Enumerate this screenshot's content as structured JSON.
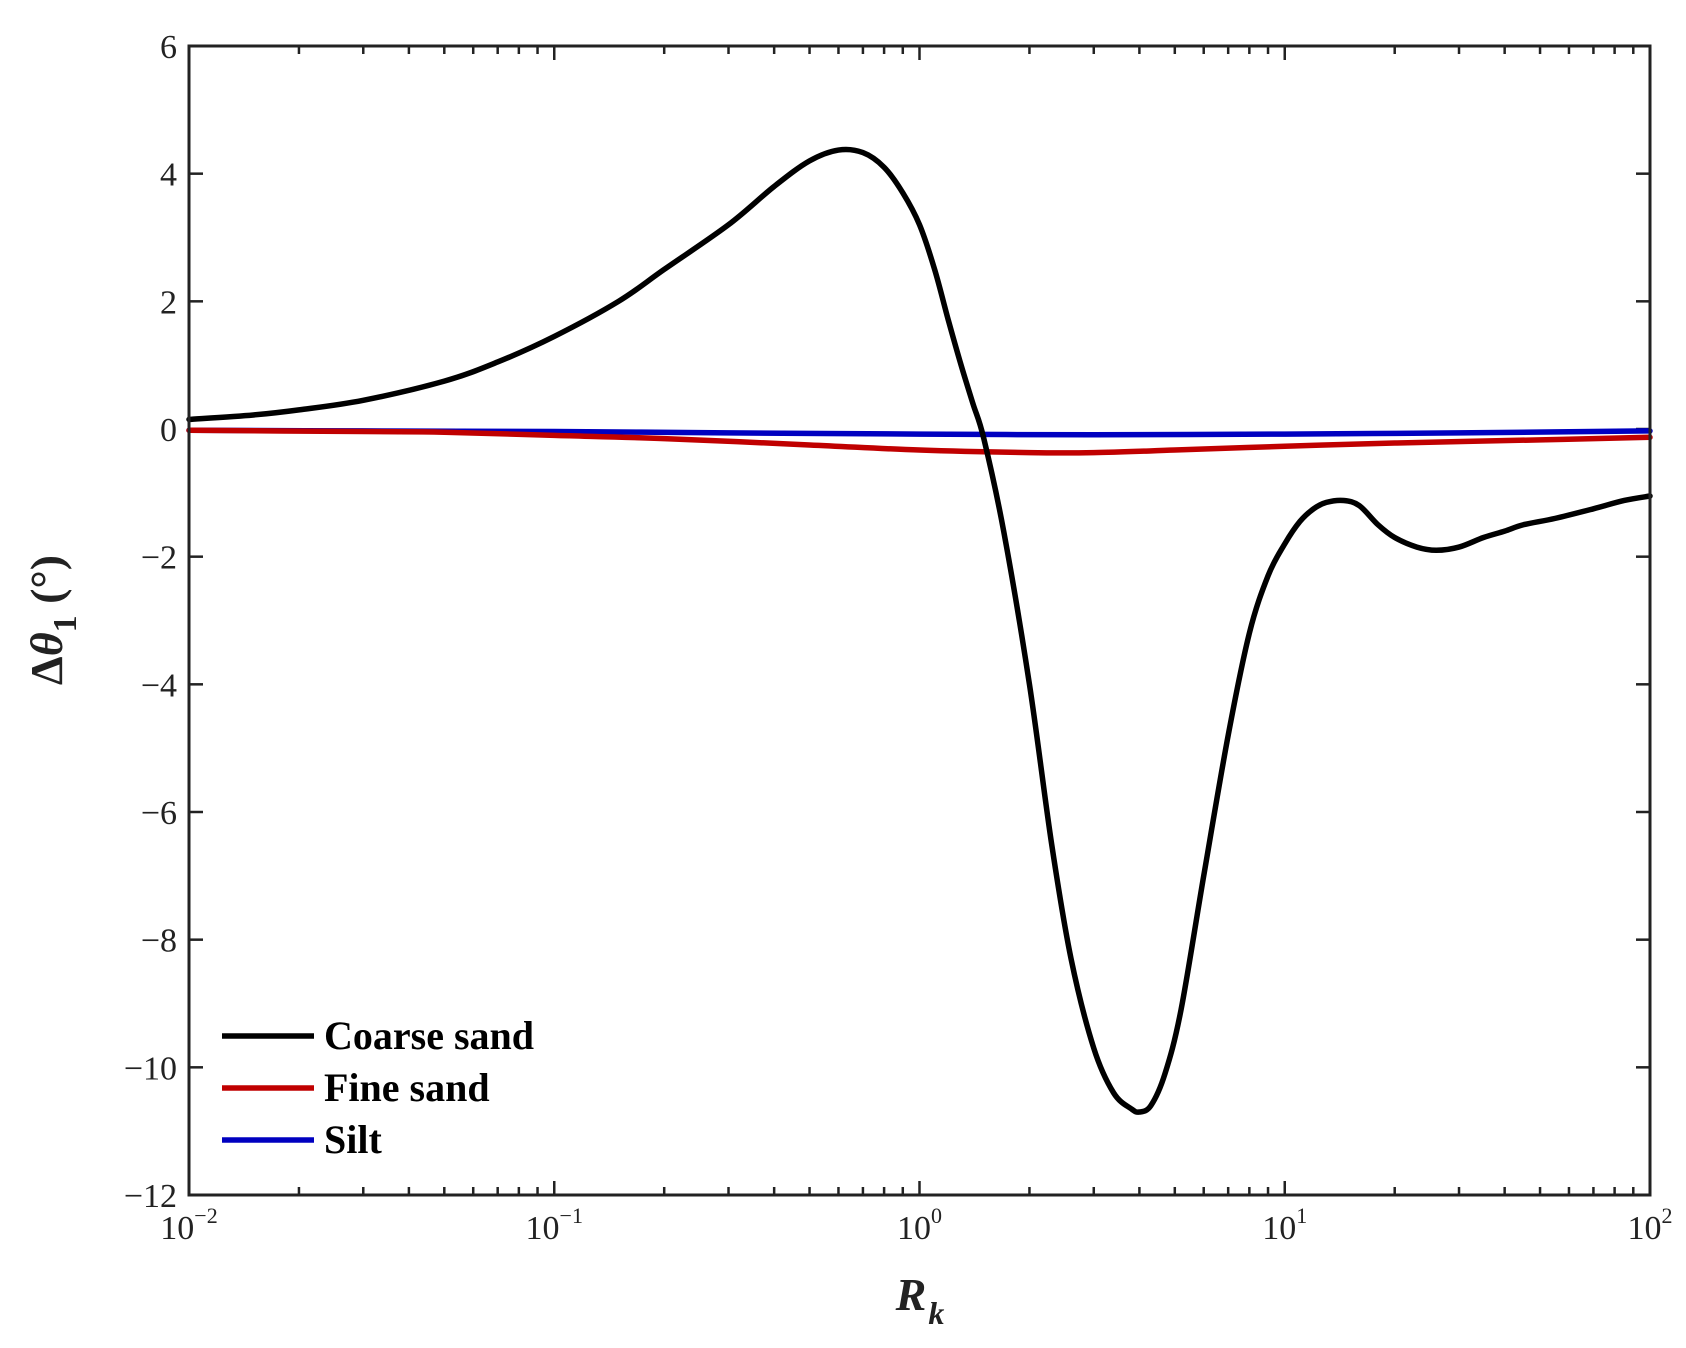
{
  "chart_data": {
    "type": "line",
    "x_scale": "log",
    "xlim": [
      0.01,
      100
    ],
    "ylim": [
      -12,
      6
    ],
    "x_ticks": [
      {
        "value": 0.01,
        "base": "10",
        "exp": "−2"
      },
      {
        "value": 0.1,
        "base": "10",
        "exp": "−1"
      },
      {
        "value": 1,
        "base": "10",
        "exp": "0"
      },
      {
        "value": 10,
        "base": "10",
        "exp": "1"
      },
      {
        "value": 100,
        "base": "10",
        "exp": "2"
      }
    ],
    "y_ticks": [
      {
        "value": 6,
        "label": "6"
      },
      {
        "value": 4,
        "label": "4"
      },
      {
        "value": 2,
        "label": "2"
      },
      {
        "value": 0,
        "label": "0"
      },
      {
        "value": -2,
        "label": "−2"
      },
      {
        "value": -4,
        "label": "−4"
      },
      {
        "value": -6,
        "label": "−6"
      },
      {
        "value": -8,
        "label": "−8"
      },
      {
        "value": -10,
        "label": "−10"
      },
      {
        "value": -12,
        "label": "−12"
      }
    ],
    "xlabel": {
      "main": "R",
      "sub": "k"
    },
    "ylabel": {
      "delta": "Δ",
      "theta": "θ",
      "sub": "1",
      "unit": " (°)"
    },
    "grid": false,
    "box": true,
    "legend_position": "bottom-left",
    "series": [
      {
        "name": "Coarse sand",
        "color": "#000000",
        "points": [
          [
            0.01,
            0.15
          ],
          [
            0.015,
            0.22
          ],
          [
            0.02,
            0.3
          ],
          [
            0.03,
            0.45
          ],
          [
            0.05,
            0.75
          ],
          [
            0.07,
            1.05
          ],
          [
            0.1,
            1.45
          ],
          [
            0.15,
            2.0
          ],
          [
            0.2,
            2.5
          ],
          [
            0.3,
            3.2
          ],
          [
            0.4,
            3.8
          ],
          [
            0.5,
            4.2
          ],
          [
            0.6,
            4.37
          ],
          [
            0.7,
            4.33
          ],
          [
            0.8,
            4.1
          ],
          [
            0.9,
            3.7
          ],
          [
            1.0,
            3.2
          ],
          [
            1.1,
            2.5
          ],
          [
            1.2,
            1.7
          ],
          [
            1.3,
            1.0
          ],
          [
            1.4,
            0.4
          ],
          [
            1.5,
            -0.15
          ],
          [
            1.7,
            -1.6
          ],
          [
            2.0,
            -4.0
          ],
          [
            2.3,
            -6.5
          ],
          [
            2.6,
            -8.3
          ],
          [
            3.0,
            -9.7
          ],
          [
            3.4,
            -10.4
          ],
          [
            3.8,
            -10.65
          ],
          [
            4.0,
            -10.7
          ],
          [
            4.3,
            -10.6
          ],
          [
            4.7,
            -10.1
          ],
          [
            5.2,
            -9.1
          ],
          [
            6.0,
            -7.0
          ],
          [
            7.0,
            -4.8
          ],
          [
            8.0,
            -3.2
          ],
          [
            9.0,
            -2.3
          ],
          [
            10.0,
            -1.8
          ],
          [
            11.0,
            -1.45
          ],
          [
            12.0,
            -1.25
          ],
          [
            13.0,
            -1.15
          ],
          [
            14.5,
            -1.12
          ],
          [
            16.0,
            -1.2
          ],
          [
            18.0,
            -1.5
          ],
          [
            20.0,
            -1.7
          ],
          [
            23.0,
            -1.85
          ],
          [
            26.0,
            -1.9
          ],
          [
            30.0,
            -1.85
          ],
          [
            35.0,
            -1.7
          ],
          [
            40.0,
            -1.6
          ],
          [
            45.0,
            -1.5
          ],
          [
            55.0,
            -1.4
          ],
          [
            70.0,
            -1.25
          ],
          [
            85.0,
            -1.12
          ],
          [
            100.0,
            -1.05
          ]
        ]
      },
      {
        "name": "Fine sand",
        "color": "#c00000",
        "points": [
          [
            0.01,
            -0.02
          ],
          [
            0.03,
            -0.04
          ],
          [
            0.05,
            -0.05
          ],
          [
            0.1,
            -0.1
          ],
          [
            0.2,
            -0.15
          ],
          [
            0.5,
            -0.25
          ],
          [
            1.0,
            -0.33
          ],
          [
            2.0,
            -0.37
          ],
          [
            3.0,
            -0.37
          ],
          [
            5.0,
            -0.33
          ],
          [
            10.0,
            -0.27
          ],
          [
            20.0,
            -0.22
          ],
          [
            50.0,
            -0.17
          ],
          [
            100.0,
            -0.13
          ]
        ]
      },
      {
        "name": "Silt",
        "color": "#0000c0",
        "points": [
          [
            0.01,
            -0.02
          ],
          [
            0.03,
            -0.03
          ],
          [
            0.1,
            -0.04
          ],
          [
            0.3,
            -0.06
          ],
          [
            1.0,
            -0.08
          ],
          [
            3.0,
            -0.09
          ],
          [
            10.0,
            -0.08
          ],
          [
            30.0,
            -0.06
          ],
          [
            100.0,
            -0.03
          ]
        ]
      }
    ]
  }
}
